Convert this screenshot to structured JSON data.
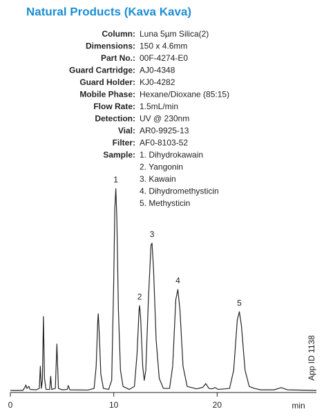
{
  "chart_data": {
    "type": "line",
    "title": "Natural Products (Kava Kava)",
    "info": [
      {
        "label": "Column:",
        "value": "Luna 5µm Silica(2)"
      },
      {
        "label": "Dimensions:",
        "value": "150 x 4.6mm"
      },
      {
        "label": "Part No.:",
        "value": "00F-4274-E0"
      },
      {
        "label": "Guard Cartridge:",
        "value": "AJ0-4348"
      },
      {
        "label": "Guard Holder:",
        "value": "KJ0-4282"
      },
      {
        "label": "Mobile Phase:",
        "value": "Hexane/Dioxane (85:15)"
      },
      {
        "label": "Flow Rate:",
        "value": "1.5mL/min"
      },
      {
        "label": "Detection:",
        "value": "UV @ 230nm"
      },
      {
        "label": "Vial:",
        "value": "AR0-9925-13"
      },
      {
        "label": "Filter:",
        "value": "AF0-8103-52"
      }
    ],
    "sample": {
      "label": "Sample:",
      "items": [
        "1. Dihydrokawain",
        "2. Yangonin",
        "3. Kawain",
        "4. Dihydromethysticin",
        "5. Methysticin"
      ]
    },
    "x_label": "min",
    "side_note": "App ID 1138",
    "xlim": [
      0,
      29.6
    ],
    "xticks": [
      0,
      10,
      20
    ],
    "ylim": [
      0,
      100
    ],
    "color": "#222222",
    "series": [
      {
        "name": "trace",
        "x": [
          0,
          1.2,
          1.4,
          1.5,
          1.6,
          1.8,
          1.9,
          2.5,
          2.8,
          2.9,
          3.0,
          3.1,
          3.2,
          3.3,
          3.45,
          3.8,
          3.9,
          4.0,
          4.35,
          4.5,
          4.65,
          5.0,
          5.5,
          5.6,
          5.75,
          7.5,
          8.1,
          8.3,
          8.45,
          8.5,
          8.6,
          8.75,
          9.0,
          9.5,
          9.8,
          10.0,
          10.1,
          10.2,
          10.3,
          10.45,
          10.65,
          10.9,
          11.5,
          12.0,
          12.25,
          12.45,
          12.5,
          12.6,
          12.8,
          12.95,
          13.1,
          13.35,
          13.6,
          13.7,
          13.85,
          14.1,
          14.4,
          14.8,
          15.4,
          15.7,
          16.0,
          16.2,
          16.4,
          16.7,
          17.1,
          18.0,
          18.6,
          18.9,
          19.2,
          19.5,
          19.8,
          20.1,
          21.2,
          21.6,
          21.95,
          22.15,
          22.35,
          22.7,
          23.1,
          23.6,
          24.2,
          25.5,
          26.2,
          26.8,
          29.6
        ],
        "values": [
          0,
          0,
          1.5,
          2.7,
          1,
          2,
          0.5,
          0.3,
          1,
          12,
          1,
          5,
          36.6,
          6,
          0.5,
          0.5,
          7,
          0.5,
          1,
          23,
          1,
          0.3,
          0.5,
          2.4,
          0.3,
          0.2,
          1,
          12,
          34,
          38,
          28,
          8,
          1,
          0.5,
          5,
          55,
          90,
          100,
          85,
          40,
          10,
          2,
          0.5,
          2,
          18,
          40,
          42,
          36,
          12,
          5,
          10,
          45,
          72,
          73,
          60,
          25,
          6,
          1,
          1,
          12,
          45,
          50,
          40,
          12,
          2,
          0.8,
          1.5,
          3.4,
          1,
          0.8,
          1.4,
          0.5,
          1,
          10,
          35,
          39,
          32,
          10,
          2,
          1,
          0.3,
          0.3,
          1.4,
          0.3,
          0
        ]
      }
    ],
    "annotations": [
      {
        "text": "1",
        "x": 10.2,
        "y": 100
      },
      {
        "text": "2",
        "x": 12.5,
        "y": 42
      },
      {
        "text": "3",
        "x": 13.7,
        "y": 73
      },
      {
        "text": "4",
        "x": 16.2,
        "y": 50
      },
      {
        "text": "5",
        "x": 22.15,
        "y": 39
      }
    ]
  }
}
